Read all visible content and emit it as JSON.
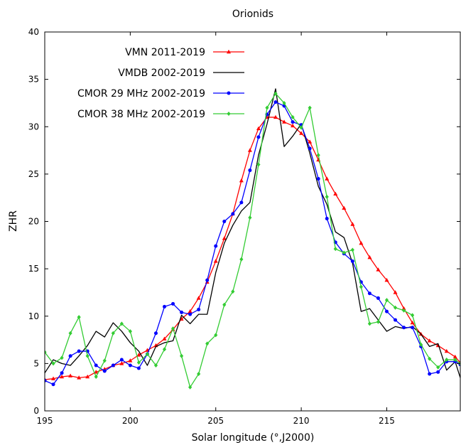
{
  "chart_data": {
    "type": "line",
    "title": "Orionids",
    "xlabel": "Solar longitude (°,J2000)",
    "ylabel": "ZHR",
    "xlim": [
      195,
      219.3
    ],
    "ylim": [
      0,
      40
    ],
    "xticks": [
      195,
      200,
      205,
      210,
      215
    ],
    "yticks": [
      0,
      5,
      10,
      15,
      20,
      25,
      30,
      35,
      40
    ],
    "grid": false,
    "legend_position": "top-left",
    "series": [
      {
        "name": "VMN 2011-2019",
        "color": "#ff0000",
        "marker": "triangle",
        "x": [
          195,
          195.5,
          196,
          196.5,
          197,
          197.5,
          198,
          198.5,
          199,
          199.5,
          200,
          200.5,
          201,
          201.5,
          202,
          202.5,
          203,
          203.5,
          204,
          204.5,
          205,
          205.5,
          206,
          206.5,
          207,
          207.5,
          208,
          208.5,
          209,
          209.5,
          210,
          210.5,
          211,
          211.5,
          212,
          212.5,
          213,
          213.5,
          214,
          214.5,
          215,
          215.5,
          216,
          216.5,
          217,
          217.5,
          218,
          218.5,
          219,
          219.3
        ],
        "y": [
          3.3,
          3.4,
          3.6,
          3.7,
          3.5,
          3.6,
          4.1,
          4.4,
          4.8,
          5.0,
          5.3,
          5.9,
          6.4,
          6.9,
          7.6,
          8.6,
          9.7,
          10.5,
          11.9,
          13.6,
          15.8,
          18.2,
          20.8,
          24.3,
          27.5,
          29.8,
          31.0,
          31.0,
          30.5,
          30.1,
          29.3,
          28.4,
          26.5,
          24.5,
          22.9,
          21.4,
          19.7,
          17.7,
          16.2,
          14.9,
          13.8,
          12.5,
          10.8,
          9.3,
          8.1,
          7.4,
          6.9,
          6.3,
          5.7,
          5.1
        ]
      },
      {
        "name": "VMDB 2002-2019",
        "color": "#000000",
        "marker": "none",
        "x": [
          195,
          195.5,
          196,
          196.5,
          197,
          197.5,
          198,
          198.5,
          199,
          199.5,
          200,
          200.5,
          201,
          201.5,
          202,
          202.5,
          203,
          203.5,
          204,
          204.5,
          205,
          205.5,
          206,
          206.5,
          207,
          207.5,
          208,
          208.5,
          209,
          209.5,
          210,
          210.5,
          211,
          211.5,
          212,
          212.5,
          213,
          213.5,
          214,
          214.5,
          215,
          215.5,
          216,
          216.5,
          217,
          217.5,
          218,
          218.5,
          219,
          219.3
        ],
        "y": [
          4.0,
          5.4,
          5.0,
          4.8,
          5.8,
          6.9,
          8.4,
          7.8,
          9.3,
          8.4,
          7.2,
          6.3,
          4.8,
          6.8,
          7.2,
          7.4,
          10.1,
          9.2,
          10.2,
          10.2,
          14.6,
          17.7,
          19.6,
          21.1,
          22.0,
          27.0,
          30.3,
          34.0,
          27.9,
          29.0,
          30.3,
          27.2,
          23.7,
          21.8,
          18.9,
          18.3,
          15.6,
          10.5,
          10.8,
          9.6,
          8.4,
          8.9,
          8.7,
          8.9,
          8.1,
          6.8,
          7.1,
          4.3,
          5.2,
          3.5
        ]
      },
      {
        "name": "CMOR 29 MHz 2002-2019",
        "color": "#0000ff",
        "marker": "circle",
        "x": [
          195,
          195.5,
          196,
          196.5,
          197,
          197.5,
          198,
          198.5,
          199,
          199.5,
          200,
          200.5,
          201,
          201.5,
          202,
          202.5,
          203,
          203.5,
          204,
          204.5,
          205,
          205.5,
          206,
          206.5,
          207,
          207.5,
          208,
          208.5,
          209,
          209.5,
          210,
          210.5,
          211,
          211.5,
          212,
          212.5,
          213,
          213.5,
          214,
          214.5,
          215,
          215.5,
          216,
          216.5,
          217,
          217.5,
          218,
          218.5,
          219,
          219.3
        ],
        "y": [
          3.2,
          2.8,
          4.0,
          5.8,
          6.3,
          6.3,
          4.8,
          4.2,
          4.8,
          5.4,
          4.8,
          4.5,
          6.0,
          8.2,
          11.0,
          11.3,
          10.4,
          10.2,
          10.7,
          13.8,
          17.4,
          20.0,
          20.8,
          22.0,
          25.4,
          28.9,
          31.3,
          32.6,
          32.2,
          30.5,
          30.2,
          27.7,
          24.5,
          20.3,
          17.8,
          16.6,
          15.8,
          13.6,
          12.4,
          11.9,
          10.5,
          9.6,
          8.8,
          8.8,
          6.8,
          3.9,
          4.1,
          5.2,
          5.2,
          4.9
        ]
      },
      {
        "name": "CMOR 38 MHz 2002-2019",
        "color": "#33cc33",
        "marker": "diamond",
        "x": [
          195,
          195.5,
          196,
          196.5,
          197,
          197.5,
          198,
          198.5,
          199,
          199.5,
          200,
          200.5,
          201,
          201.5,
          202,
          202.5,
          203,
          203.5,
          204,
          204.5,
          205,
          205.5,
          206,
          206.5,
          207,
          207.5,
          208,
          208.5,
          209,
          209.5,
          210,
          210.5,
          211,
          211.5,
          212,
          212.5,
          213,
          213.5,
          214,
          214.5,
          215,
          215.5,
          216,
          216.5,
          217,
          217.5,
          218,
          218.5,
          219,
          219.3
        ],
        "y": [
          6.2,
          5.0,
          5.6,
          8.2,
          9.9,
          5.8,
          3.6,
          5.3,
          8.2,
          9.2,
          8.4,
          5.1,
          6.0,
          4.8,
          6.5,
          8.7,
          5.8,
          2.5,
          3.9,
          7.1,
          8.0,
          11.2,
          12.6,
          16.0,
          20.4,
          26.0,
          32.0,
          33.5,
          32.5,
          31.0,
          29.9,
          32.0,
          27.0,
          22.6,
          17.1,
          16.7,
          17.0,
          13.1,
          9.2,
          9.4,
          11.7,
          10.9,
          10.6,
          10.1,
          7.0,
          5.5,
          4.6,
          5.4,
          5.4,
          5.0
        ]
      }
    ]
  }
}
